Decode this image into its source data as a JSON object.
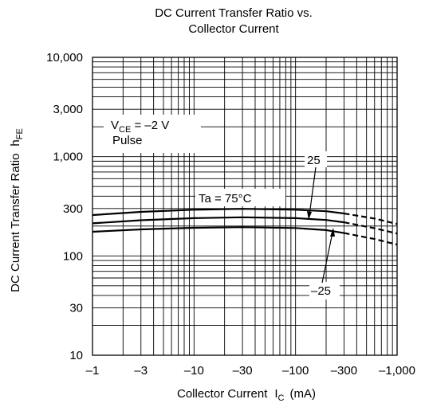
{
  "chart_data": {
    "type": "line",
    "title_lines": [
      "DC Current Transfer Ratio vs.",
      "Collector Current"
    ],
    "xlabel": "Collector Current",
    "xlabel_sym": "I",
    "xlabel_sub": "C",
    "xlabel_unit": "(mA)",
    "ylabel": "DC Current Transfer Ratio",
    "ylabel_sym": "h",
    "ylabel_sub": "FE",
    "x_scale": "log",
    "y_scale": "log",
    "xlim": [
      1,
      1000
    ],
    "ylim": [
      10,
      10000
    ],
    "x_tick_values": [
      1,
      3,
      10,
      30,
      100,
      300,
      1000
    ],
    "x_tick_labels": [
      "–1",
      "–3",
      "–10",
      "–30",
      "–100",
      "–300",
      "–1,000"
    ],
    "y_tick_values": [
      10,
      30,
      100,
      300,
      1000,
      3000,
      10000
    ],
    "y_tick_labels": [
      "10",
      "30",
      "100",
      "300",
      "1,000",
      "3,000",
      "10,000"
    ],
    "grid": true,
    "conditions": {
      "vce_sym": "V",
      "vce_sub": "CE",
      "vce_value": " = –2 V",
      "mode": "Pulse"
    },
    "series": [
      {
        "name": "Ta = 75°C",
        "x": [
          1,
          3,
          10,
          30,
          100,
          200,
          300,
          600,
          1000
        ],
        "y": [
          258,
          278,
          292,
          298,
          292,
          282,
          268,
          238,
          210
        ],
        "dashed_from": 300
      },
      {
        "name": "25",
        "x": [
          1,
          3,
          10,
          30,
          100,
          200,
          300,
          600,
          1000
        ],
        "y": [
          213,
          229,
          240,
          245,
          240,
          230,
          218,
          190,
          168
        ],
        "dashed_from": 300
      },
      {
        "name": "–25",
        "x": [
          1,
          3,
          10,
          30,
          100,
          200,
          300,
          600,
          1000
        ],
        "y": [
          175,
          185,
          192,
          195,
          191,
          182,
          170,
          148,
          130
        ],
        "dashed_from": 300
      }
    ]
  }
}
